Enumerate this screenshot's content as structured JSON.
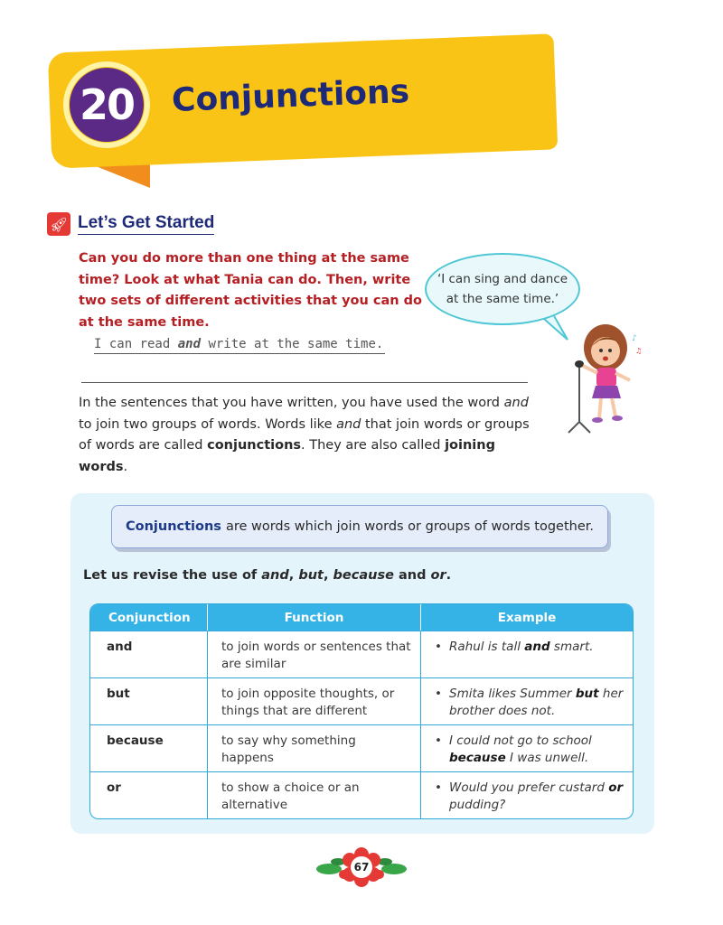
{
  "chapter": {
    "number": "20",
    "title": "Conjunctions"
  },
  "section": {
    "title": "Let’s Get Started"
  },
  "intro_text": "Can you do more than one thing at the same time? Look at what Tania can do. Then, write two sets of different activities that you can do at the same time.",
  "example_line": {
    "before": "I can read ",
    "keyword": "and",
    "after": " write at the same time."
  },
  "speech_bubble": {
    "line1": "‘I can sing and dance",
    "line2": "at the same time.’"
  },
  "paragraph": {
    "p1": "In the sentences that you have written, you have used the word ",
    "w1": "and",
    "p2": " to join two groups of words. Words like ",
    "w2": "and",
    "p3": " that join words or groups of words are called ",
    "w3": "conjunctions",
    "p4": ". They are also called ",
    "w4": "joining words",
    "p5": "."
  },
  "definition": {
    "keyword": "Conjunctions",
    "rest": "are words which join words or groups of words together."
  },
  "revise": {
    "prefix": "Let us revise the use of ",
    "w1": "and",
    "sep1": ", ",
    "w2": "but",
    "sep2": ", ",
    "w3": "because",
    "mid": " and ",
    "w4": "or",
    "end": "."
  },
  "table": {
    "headers": [
      "Conjunction",
      "Function",
      "Example"
    ],
    "rows": [
      {
        "conj": "and",
        "func": "to join words or sentences that are similar",
        "ex_a": "Rahul is tall ",
        "ex_b": "and",
        "ex_c": " smart.",
        "bullet": "•"
      },
      {
        "conj": "but",
        "func": "to join opposite thoughts, or things that are different",
        "ex_a": "Smita likes Summer ",
        "ex_b": "but",
        "ex_c": " her brother does not.",
        "bullet": "•"
      },
      {
        "conj": "because",
        "func": "to say why something happens",
        "ex_a": "I could not go to school ",
        "ex_b": "because",
        "ex_c": " I was unwell.",
        "bullet": "•"
      },
      {
        "conj": "or",
        "func": "to show a choice or an alternative",
        "ex_a": "Would you prefer custard ",
        "ex_b": "or",
        "ex_c": " pudding?",
        "bullet": "•"
      }
    ]
  },
  "page_number": "67",
  "colors": {
    "banner": "#f9c416",
    "chapter_circle": "#5b2a86",
    "title": "#1e2a78",
    "intro": "#b51f24",
    "table_header": "#35b3e6",
    "panel": "#e3f4fb"
  },
  "icons": {
    "section": "rocket-icon",
    "page_badge": "flower-icon"
  }
}
